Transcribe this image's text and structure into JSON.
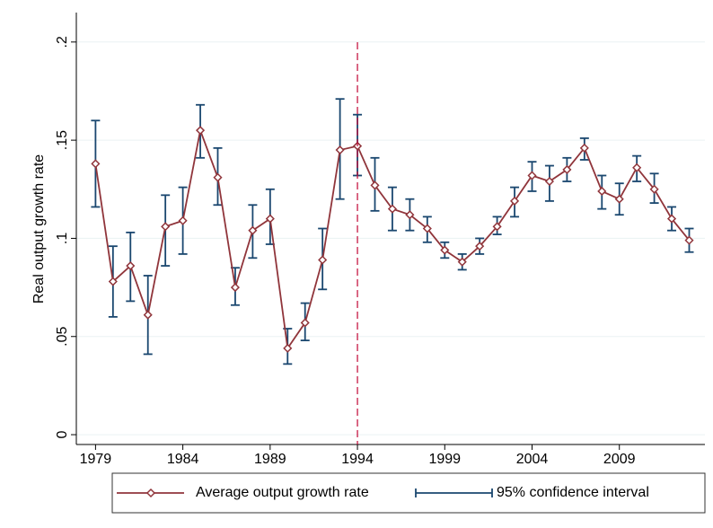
{
  "chart_data": {
    "type": "line_ci",
    "y_label": "Real output growth rate",
    "x": [
      1979,
      1980,
      1981,
      1982,
      1983,
      1984,
      1985,
      1986,
      1987,
      1988,
      1989,
      1990,
      1991,
      1992,
      1993,
      1994,
      1995,
      1996,
      1997,
      1998,
      1999,
      2000,
      2001,
      2002,
      2003,
      2004,
      2005,
      2006,
      2007,
      2008,
      2009,
      2010,
      2011,
      2012,
      2013
    ],
    "series": [
      {
        "name": "Average output growth rate",
        "color": "#90353b",
        "values": [
          0.138,
          0.078,
          0.086,
          0.061,
          0.106,
          0.109,
          0.155,
          0.131,
          0.075,
          0.104,
          0.11,
          0.044,
          0.057,
          0.089,
          0.145,
          0.147,
          0.127,
          0.115,
          0.112,
          0.105,
          0.094,
          0.088,
          0.096,
          0.106,
          0.119,
          0.132,
          0.129,
          0.135,
          0.146,
          0.124,
          0.12,
          0.136,
          0.125,
          0.11,
          0.099
        ]
      },
      {
        "name": "95% confidence interval",
        "color": "#1a476f",
        "low": [
          0.116,
          0.06,
          0.068,
          0.041,
          0.086,
          0.092,
          0.141,
          0.117,
          0.066,
          0.09,
          0.097,
          0.036,
          0.048,
          0.074,
          0.12,
          0.132,
          0.114,
          0.104,
          0.104,
          0.098,
          0.09,
          0.084,
          0.092,
          0.102,
          0.111,
          0.124,
          0.119,
          0.129,
          0.14,
          0.115,
          0.112,
          0.129,
          0.118,
          0.104,
          0.093
        ],
        "high": [
          0.16,
          0.096,
          0.103,
          0.081,
          0.122,
          0.126,
          0.168,
          0.146,
          0.085,
          0.117,
          0.125,
          0.054,
          0.067,
          0.105,
          0.171,
          0.163,
          0.141,
          0.126,
          0.12,
          0.111,
          0.098,
          0.092,
          0.1,
          0.111,
          0.126,
          0.139,
          0.137,
          0.141,
          0.151,
          0.132,
          0.128,
          0.142,
          0.133,
          0.116,
          0.105
        ]
      }
    ],
    "vline": 1994,
    "vline_color": "#c10534",
    "xlim": [
      1977.9,
      2013.9
    ],
    "xticks": [
      1979,
      1984,
      1989,
      1994,
      1999,
      2004,
      2009
    ],
    "ylim": [
      -0.005,
      0.215
    ],
    "yticks": [
      0,
      {
        "value": 0.05,
        "label": ".05"
      },
      {
        "value": 0.1,
        "label": ".1"
      },
      {
        "value": 0.15,
        "label": ".15"
      },
      {
        "value": 0.2,
        "label": ".2"
      }
    ],
    "grid": true
  }
}
